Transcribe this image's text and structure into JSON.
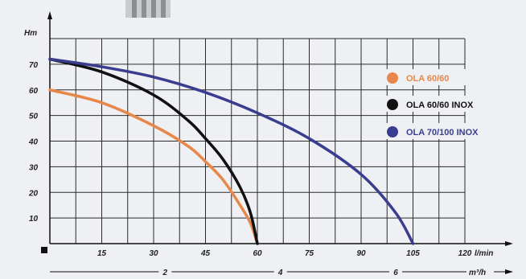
{
  "chart_data": {
    "type": "line",
    "ylabel": "Hm",
    "xlabel_primary": "l/min",
    "xlabel_secondary": "m³/h",
    "x_ticks": [
      "15",
      "30",
      "45",
      "60",
      "75",
      "90",
      "105",
      "120"
    ],
    "y_ticks": [
      "10",
      "20",
      "30",
      "40",
      "50",
      "60",
      "70"
    ],
    "secondary_ticks": [
      "2",
      "4",
      "6"
    ],
    "xlim": [
      0,
      120
    ],
    "ylim": [
      0,
      80
    ],
    "grid": true,
    "legend_position": "right",
    "series": [
      {
        "name": "OLA 60/60",
        "color": "#e8874a",
        "x": [
          0,
          15,
          30,
          40,
          45,
          50,
          55,
          58,
          60
        ],
        "y": [
          60,
          55,
          46,
          38,
          32,
          25,
          15,
          8,
          0
        ]
      },
      {
        "name": "OLA 60/60 INOX",
        "color": "#111111",
        "x": [
          0,
          15,
          30,
          40,
          45,
          50,
          55,
          58,
          60
        ],
        "y": [
          72,
          67,
          58,
          48,
          41,
          33,
          22,
          12,
          0
        ]
      },
      {
        "name": "OLA 70/100 INOX",
        "color": "#3a3d8f",
        "x": [
          0,
          15,
          30,
          45,
          60,
          75,
          90,
          100,
          105
        ],
        "y": [
          72,
          69,
          65,
          59,
          51,
          41,
          27,
          12,
          0
        ]
      }
    ]
  }
}
